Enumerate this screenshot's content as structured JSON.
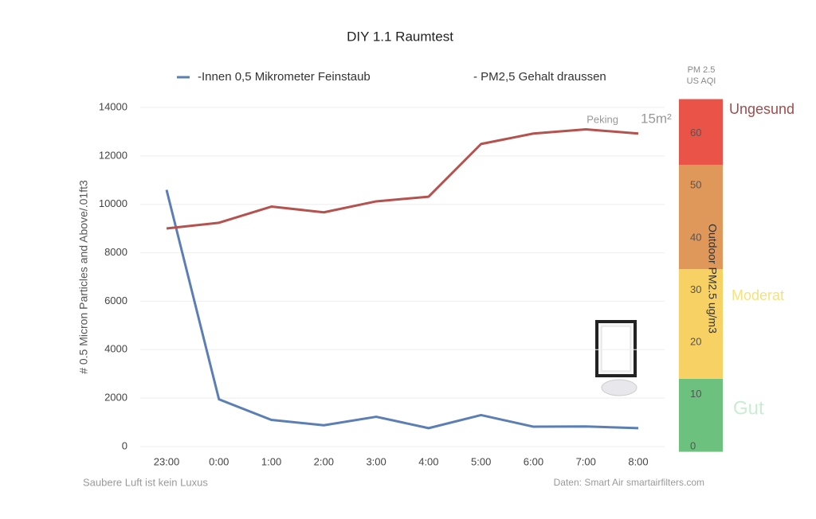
{
  "chart_data": {
    "type": "line",
    "title": "DIY 1.1 Raumtest",
    "y_label": "# 0.5 Micron Particles and Above/.01ft3",
    "y2_label": "Outdoor PM2.5 ug/m3",
    "y2_header": [
      "PM 2.5",
      "US AQI"
    ],
    "categories": [
      "23:00",
      "0:00",
      "1:00",
      "2:00",
      "3:00",
      "4:00",
      "5:00",
      "6:00",
      "7:00",
      "8:00"
    ],
    "series": [
      {
        "name": "-Innen 0,5 Mikrometer Feinstaub",
        "color": "#5b7fb5",
        "values": [
          10600,
          1950,
          1100,
          880,
          1230,
          760,
          1300,
          820,
          830,
          760
        ]
      },
      {
        "name": "- PM2,5 Gehalt draussen",
        "color": "#b5524e",
        "axis": "y2",
        "values": [
          41.8,
          42.9,
          46.0,
          44.9,
          47.0,
          47.9,
          58.0,
          60.0,
          60.8,
          60.0
        ]
      }
    ],
    "ylim": [
      0,
      14000
    ],
    "yticks": [
      0,
      2000,
      4000,
      6000,
      8000,
      10000,
      12000,
      14000
    ],
    "y2lim": [
      0,
      65
    ],
    "y2ticks": [
      0,
      10,
      20,
      30,
      40,
      50,
      60
    ],
    "bands": [
      {
        "from": -1,
        "to": 13,
        "color": "#6cc17f",
        "label": "Gut",
        "label_color": "#c9ecd3"
      },
      {
        "from": 13,
        "to": 34,
        "color": "#f7d163",
        "label": "Moderat",
        "label_color": "#f5e27d"
      },
      {
        "from": 34,
        "to": 54,
        "color": "#e0975a"
      },
      {
        "from": 54,
        "to": 66.6,
        "color": "#ea5348",
        "label": "Ungesund",
        "label_color": "#a24b4b"
      }
    ],
    "annotations": [
      "Peking",
      "15m²"
    ],
    "footer_left": "Saubere Luft ist kein Luxus",
    "footer_right": "Daten: Smart Air smartairfilters.com",
    "grid": true
  }
}
